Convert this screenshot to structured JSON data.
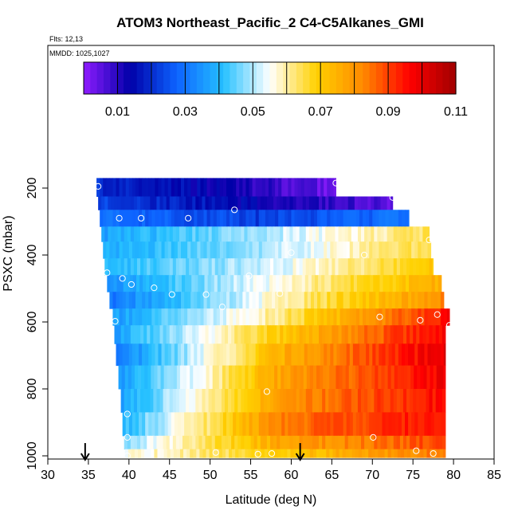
{
  "chart_data": {
    "type": "heatmap",
    "title": "ATOM3 Northeast_Pacific_2 C4-C5Alkanes_GMI",
    "annotations": [
      "Flts: 12,13",
      "MMDD: 1025,1027"
    ],
    "xlabel": "Latitude (deg N)",
    "ylabel": "PSXC (mbar)",
    "xlim": [
      30,
      85
    ],
    "ylim": [
      1000,
      100
    ],
    "x_ticks": [
      30,
      35,
      40,
      45,
      50,
      55,
      60,
      65,
      70,
      75,
      80,
      85
    ],
    "y_ticks": [
      200,
      400,
      600,
      800,
      1000
    ],
    "colorbar": {
      "min": 0.0,
      "max": 0.11,
      "ticks": [
        0.01,
        0.03,
        0.05,
        0.07,
        0.09,
        0.11
      ],
      "tick_labels": [
        "0.01",
        "0.03",
        "0.05",
        "0.07",
        "0.09",
        "0.11"
      ],
      "colors": [
        "#8f1cff",
        "#0000a8",
        "#0d63ff",
        "#25c0ff",
        "#ffffff",
        "#ffd100",
        "#ff8a00",
        "#ff0000",
        "#a00000"
      ]
    },
    "layers": [
      {
        "p_top": 170,
        "p_bot": 225,
        "lat_min": 36.0,
        "lat_max": 65.5,
        "v_south": 0.02,
        "v_mid": 0.013,
        "v_north": 0.003
      },
      {
        "p_top": 225,
        "p_bot": 265,
        "lat_min": 36.2,
        "lat_max": 72.5,
        "v_south": 0.023,
        "v_mid": 0.014,
        "v_north": 0.005
      },
      {
        "p_top": 265,
        "p_bot": 315,
        "lat_min": 36.4,
        "lat_max": 74.5,
        "v_south": 0.03,
        "v_mid": 0.022,
        "v_north": 0.03
      },
      {
        "p_top": 315,
        "p_bot": 360,
        "lat_min": 36.6,
        "lat_max": 77.0,
        "v_south": 0.036,
        "v_mid": 0.05,
        "v_north": 0.064
      },
      {
        "p_top": 360,
        "p_bot": 410,
        "lat_min": 36.8,
        "lat_max": 77.2,
        "v_south": 0.038,
        "v_mid": 0.05,
        "v_north": 0.066
      },
      {
        "p_top": 410,
        "p_bot": 460,
        "lat_min": 37.0,
        "lat_max": 77.5,
        "v_south": 0.04,
        "v_mid": 0.052,
        "v_north": 0.07
      },
      {
        "p_top": 460,
        "p_bot": 510,
        "lat_min": 37.3,
        "lat_max": 78.5,
        "v_south": 0.034,
        "v_mid": 0.056,
        "v_north": 0.076
      },
      {
        "p_top": 510,
        "p_bot": 560,
        "lat_min": 37.6,
        "lat_max": 78.8,
        "v_south": 0.03,
        "v_mid": 0.058,
        "v_north": 0.082
      },
      {
        "p_top": 560,
        "p_bot": 610,
        "lat_min": 38.0,
        "lat_max": 79.5,
        "v_south": 0.036,
        "v_mid": 0.062,
        "v_north": 0.096
      },
      {
        "p_top": 610,
        "p_bot": 665,
        "lat_min": 38.2,
        "lat_max": 79.0,
        "v_south": 0.036,
        "v_mid": 0.07,
        "v_north": 0.098
      },
      {
        "p_top": 665,
        "p_bot": 730,
        "lat_min": 38.4,
        "lat_max": 79.0,
        "v_south": 0.03,
        "v_mid": 0.075,
        "v_north": 0.1
      },
      {
        "p_top": 730,
        "p_bot": 800,
        "lat_min": 38.7,
        "lat_max": 79.0,
        "v_south": 0.034,
        "v_mid": 0.078,
        "v_north": 0.098
      },
      {
        "p_top": 800,
        "p_bot": 870,
        "lat_min": 39.0,
        "lat_max": 79.0,
        "v_south": 0.036,
        "v_mid": 0.08,
        "v_north": 0.096
      },
      {
        "p_top": 870,
        "p_bot": 940,
        "lat_min": 39.2,
        "lat_max": 79.0,
        "v_south": 0.04,
        "v_mid": 0.084,
        "v_north": 0.096
      },
      {
        "p_top": 940,
        "p_bot": 980,
        "lat_min": 39.4,
        "lat_max": 79.0,
        "v_south": 0.048,
        "v_mid": 0.078,
        "v_north": 0.09
      },
      {
        "p_top": 980,
        "p_bot": 1005,
        "lat_min": 39.5,
        "lat_max": 79.0,
        "v_south": 0.055,
        "v_mid": 0.07,
        "v_north": 0.085
      }
    ],
    "sample_points": [
      {
        "lat": 36.2,
        "p": 195
      },
      {
        "lat": 65.5,
        "p": 185
      },
      {
        "lat": 72.5,
        "p": 228
      },
      {
        "lat": 38.8,
        "p": 290
      },
      {
        "lat": 41.5,
        "p": 290
      },
      {
        "lat": 47.3,
        "p": 290
      },
      {
        "lat": 53.0,
        "p": 265
      },
      {
        "lat": 77.0,
        "p": 355
      },
      {
        "lat": 60.0,
        "p": 393
      },
      {
        "lat": 69.0,
        "p": 400
      },
      {
        "lat": 37.3,
        "p": 453
      },
      {
        "lat": 39.2,
        "p": 470
      },
      {
        "lat": 54.8,
        "p": 462
      },
      {
        "lat": 40.3,
        "p": 488
      },
      {
        "lat": 43.1,
        "p": 498
      },
      {
        "lat": 45.3,
        "p": 518
      },
      {
        "lat": 49.5,
        "p": 518
      },
      {
        "lat": 58.6,
        "p": 515
      },
      {
        "lat": 51.5,
        "p": 555
      },
      {
        "lat": 78.0,
        "p": 578
      },
      {
        "lat": 70.9,
        "p": 585
      },
      {
        "lat": 75.9,
        "p": 595
      },
      {
        "lat": 38.3,
        "p": 598
      },
      {
        "lat": 79.5,
        "p": 610
      },
      {
        "lat": 57.0,
        "p": 808
      },
      {
        "lat": 39.8,
        "p": 875
      },
      {
        "lat": 39.8,
        "p": 945
      },
      {
        "lat": 70.1,
        "p": 945
      },
      {
        "lat": 50.7,
        "p": 990
      },
      {
        "lat": 39.8,
        "p": 1000
      },
      {
        "lat": 55.9,
        "p": 995
      },
      {
        "lat": 57.6,
        "p": 993
      },
      {
        "lat": 75.4,
        "p": 985
      },
      {
        "lat": 77.5,
        "p": 993
      }
    ],
    "arrows_lat": [
      34.6,
      61.1
    ]
  }
}
